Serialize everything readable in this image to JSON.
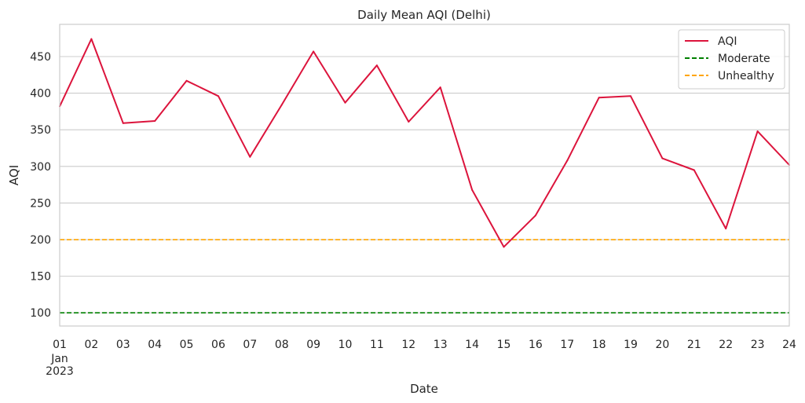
{
  "chart_data": {
    "type": "line",
    "title": "Daily Mean AQI (Delhi)",
    "xlabel": "Date",
    "ylabel": "AQI",
    "x": [
      "01",
      "02",
      "03",
      "04",
      "05",
      "06",
      "07",
      "08",
      "09",
      "10",
      "11",
      "12",
      "13",
      "14",
      "15",
      "16",
      "17",
      "18",
      "19",
      "20",
      "21",
      "22",
      "23",
      "24"
    ],
    "x_month_label": "Jan",
    "x_year_label": "2023",
    "ylim": [
      82,
      494
    ],
    "yticks": [
      100,
      150,
      200,
      250,
      300,
      350,
      400,
      450
    ],
    "grid": "horizontal",
    "legend_position": "top-right",
    "series": [
      {
        "name": "AQI",
        "color": "#dc143c",
        "style": "solid",
        "values": [
          382,
          474,
          359,
          362,
          417,
          396,
          313,
          384,
          457,
          387,
          438,
          361,
          408,
          268,
          190,
          233,
          308,
          394,
          396,
          311,
          295,
          215,
          348,
          302
        ]
      }
    ],
    "reference_lines": [
      {
        "name": "Moderate",
        "value": 100,
        "color": "#008000",
        "style": "dashed"
      },
      {
        "name": "Unhealthy",
        "value": 200,
        "color": "#ffa500",
        "style": "dashed"
      }
    ]
  }
}
